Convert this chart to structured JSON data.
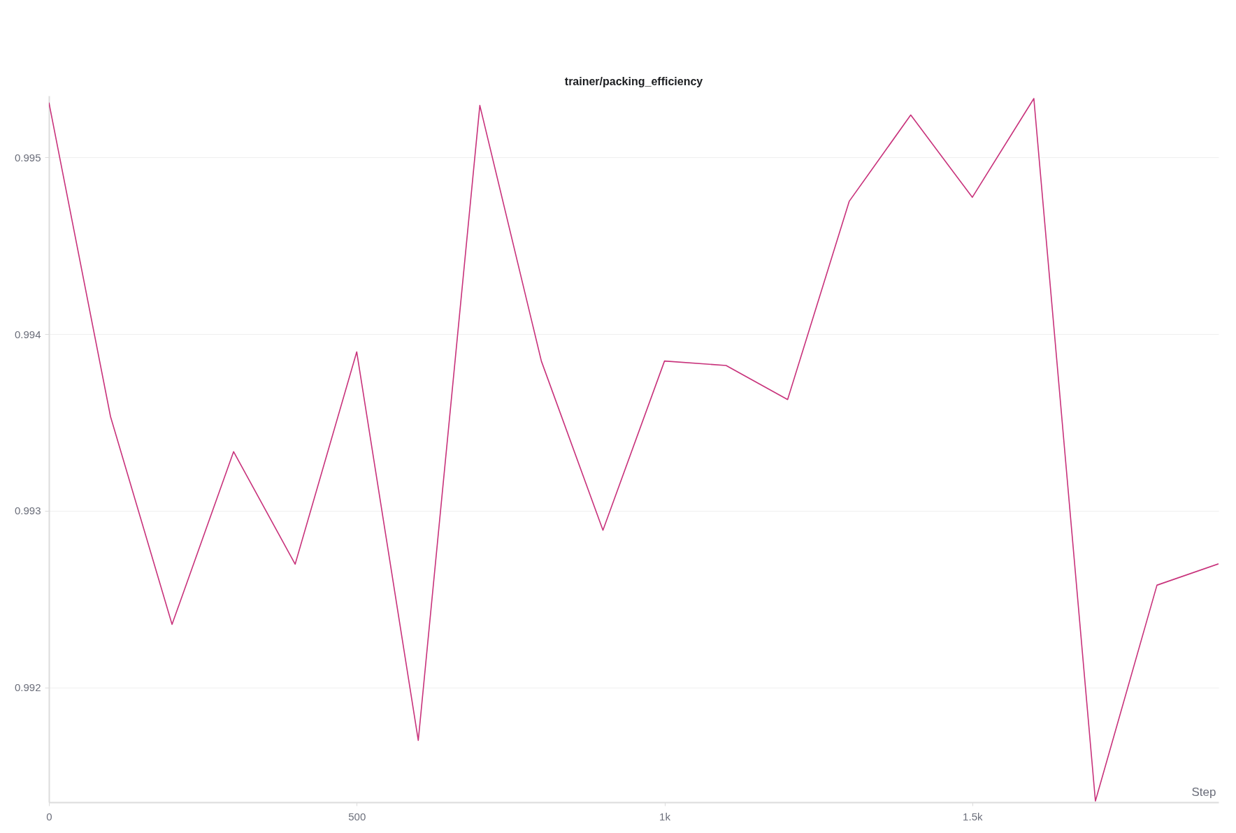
{
  "chart_data": {
    "type": "line",
    "title": "trainer/packing_efficiency",
    "xlabel": "Step",
    "x": [
      0,
      100,
      200,
      300,
      400,
      500,
      600,
      700,
      800,
      900,
      1000,
      1100,
      1200,
      1300,
      1400,
      1500,
      1600,
      1700,
      1800,
      1900
    ],
    "values": [
      0.995311,
      0.993534,
      0.992357,
      0.993335,
      0.992698,
      0.9939,
      0.9917,
      0.995295,
      0.993847,
      0.99289,
      0.993848,
      0.993823,
      0.99363,
      0.994752,
      0.995241,
      0.994775,
      0.995334,
      0.991357,
      0.992579,
      0.9927
    ],
    "color": "#c8327b",
    "xlim": [
      0,
      1900
    ],
    "xticks": [
      0,
      500,
      {
        "value": 1000,
        "label": "1k"
      },
      {
        "value": 1500,
        "label": "1.5k"
      }
    ],
    "ylim": [
      0.99135,
      0.99535
    ],
    "yticks": [
      0.992,
      0.993,
      0.994,
      0.995
    ],
    "grid": "y"
  }
}
